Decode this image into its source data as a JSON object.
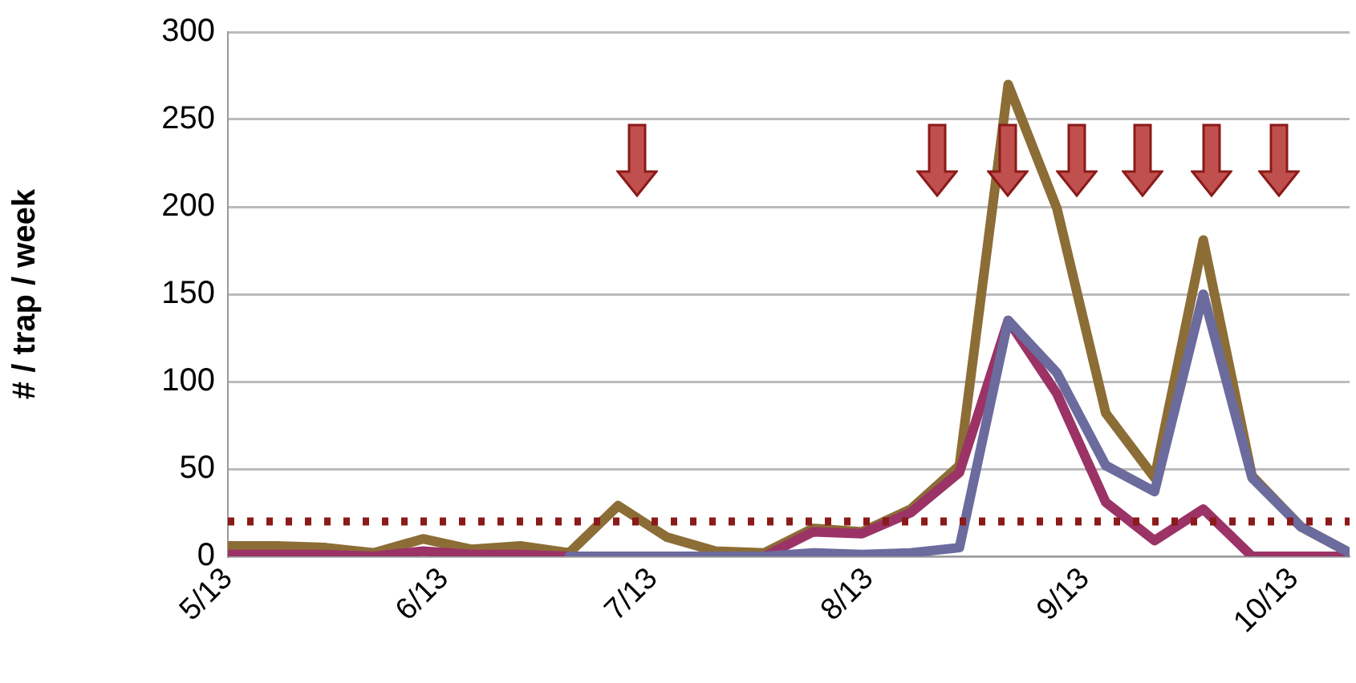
{
  "chart_data": {
    "type": "line",
    "ylabel": "# / trap / week",
    "x": [
      "--05-13",
      "--05-20",
      "--05-27",
      "--06-03",
      "--06-10",
      "--06-17",
      "--06-24",
      "--07-01",
      "--07-08",
      "--07-15",
      "--07-22",
      "--07-29",
      "--08-05",
      "--08-12",
      "--08-19",
      "--08-26",
      "--09-02",
      "--09-09",
      "--09-16",
      "--09-23",
      "--09-30",
      "--10-07",
      "--10-14",
      "--10-21"
    ],
    "series": [
      {
        "color": "#6b6b9e",
        "values": [
          null,
          null,
          null,
          null,
          null,
          null,
          null,
          0,
          0,
          0,
          0,
          0,
          2,
          1,
          2,
          5,
          135,
          105,
          52,
          37,
          150,
          45,
          17,
          2
        ]
      },
      {
        "color": "#9b3366",
        "values": [
          1,
          1,
          1,
          0,
          3,
          1,
          1,
          0,
          0,
          0,
          0,
          0,
          14,
          13,
          25,
          48,
          135,
          93,
          31,
          9,
          27,
          0,
          0,
          0
        ]
      },
      {
        "color": "#8c6d36",
        "values": [
          6,
          6,
          5,
          2,
          10,
          4,
          6,
          2,
          29,
          11,
          3,
          2,
          16,
          14,
          27,
          52,
          270,
          199,
          82,
          45,
          181,
          46,
          17,
          2
        ]
      }
    ],
    "xlim": [
      "--05-13",
      "--10-21"
    ],
    "xticks": [
      {
        "value": "--05-13",
        "label": "5/13"
      },
      {
        "value": "--06-13",
        "label": "6/13"
      },
      {
        "value": "--07-13",
        "label": "7/13"
      },
      {
        "value": "--08-13",
        "label": "8/13"
      },
      {
        "value": "--09-13",
        "label": "9/13"
      },
      {
        "value": "--10-13",
        "label": "10/13"
      }
    ],
    "ylim": [
      0,
      300
    ],
    "yticks": [
      0,
      50,
      100,
      150,
      200,
      250,
      300
    ],
    "ref_lines": [
      {
        "axis": "y",
        "value": 20,
        "color": "#8b1a1a",
        "line_style": "dotted"
      }
    ],
    "grid": "y",
    "legend": false,
    "marker": "none",
    "line_style": "solid"
  }
}
